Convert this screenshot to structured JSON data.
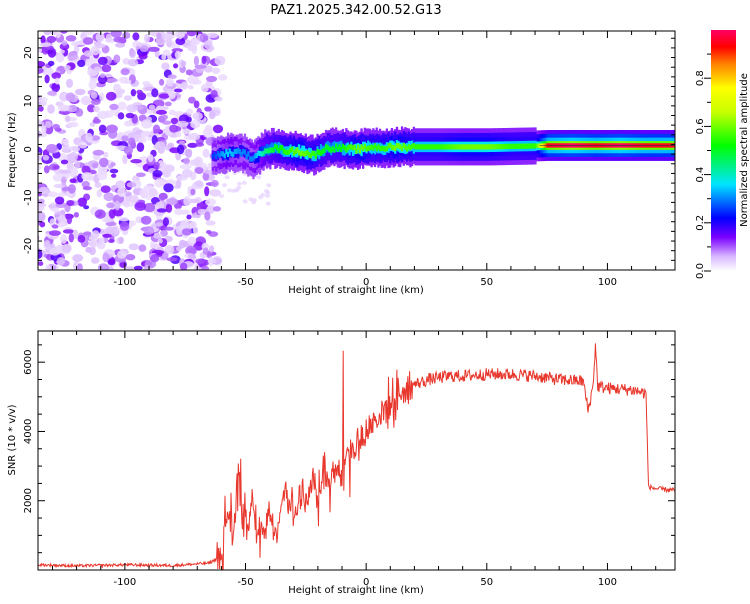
{
  "title": "PAZ1.2025.342.00.52.G13",
  "chart_data": [
    {
      "type": "heatmap",
      "title": "PAZ1.2025.342.00.52.G13",
      "xlabel": "Height of straight line (km)",
      "ylabel": "Frequency (Hz)",
      "xlim": [
        -136,
        128
      ],
      "ylim": [
        -25,
        24.5
      ],
      "xticks": [
        "-100",
        "-50",
        "0",
        "50",
        "100"
      ],
      "yticks": [
        "20",
        "10",
        "0",
        "-10",
        "-20"
      ],
      "colorbar": {
        "label": "Normalized spectral amplitude",
        "range": [
          0,
          1
        ],
        "ticks": [
          "0.0",
          "0.2",
          "0.4",
          "0.6",
          "0.8"
        ]
      },
      "noise_region_km": [
        -136,
        -62
      ],
      "ridge": [
        {
          "x": -64,
          "y": -1.5,
          "amp": 0.25
        },
        {
          "x": -58,
          "y": -0.8,
          "amp": 0.35
        },
        {
          "x": -52,
          "y": -0.6,
          "amp": 0.3
        },
        {
          "x": -47,
          "y": -2.0,
          "amp": 0.3
        },
        {
          "x": -42,
          "y": 0.0,
          "amp": 0.45
        },
        {
          "x": -38,
          "y": 0.2,
          "amp": 0.5
        },
        {
          "x": -33,
          "y": -0.3,
          "amp": 0.55
        },
        {
          "x": -28,
          "y": -0.5,
          "amp": 0.6
        },
        {
          "x": -22,
          "y": -1.2,
          "amp": 0.55
        },
        {
          "x": -17,
          "y": 0.2,
          "amp": 0.5
        },
        {
          "x": -12,
          "y": 0.3,
          "amp": 0.5
        },
        {
          "x": -8,
          "y": 0.1,
          "amp": 0.55
        },
        {
          "x": -3,
          "y": 0.0,
          "amp": 0.6
        },
        {
          "x": 2,
          "y": 0.5,
          "amp": 0.55
        },
        {
          "x": 7,
          "y": 0.3,
          "amp": 0.55
        },
        {
          "x": 12,
          "y": 0.5,
          "amp": 0.6
        },
        {
          "x": 20,
          "y": 0.5,
          "amp": 0.55
        },
        {
          "x": 30,
          "y": 0.5,
          "amp": 0.55
        },
        {
          "x": 40,
          "y": 0.5,
          "amp": 0.6
        },
        {
          "x": 50,
          "y": 0.5,
          "amp": 0.6
        },
        {
          "x": 60,
          "y": 0.6,
          "amp": 0.55
        },
        {
          "x": 70,
          "y": 0.7,
          "amp": 0.55
        },
        {
          "x": 75,
          "y": 0.8,
          "amp": 0.95
        },
        {
          "x": 85,
          "y": 0.8,
          "amp": 1.0
        },
        {
          "x": 95,
          "y": 0.8,
          "amp": 0.95
        },
        {
          "x": 105,
          "y": 0.8,
          "amp": 1.0
        },
        {
          "x": 115,
          "y": 0.8,
          "amp": 0.95
        },
        {
          "x": 128,
          "y": 0.8,
          "amp": 0.95
        }
      ]
    },
    {
      "type": "line",
      "xlabel": "Height of straight line (km)",
      "ylabel": "SNR (10 * v/v)",
      "xlim": [
        -136,
        128
      ],
      "ylim": [
        0,
        6900
      ],
      "xticks": [
        "-100",
        "-50",
        "0",
        "50",
        "100"
      ],
      "yticks": [
        "2000",
        "4000",
        "6000"
      ],
      "color": "#e8372d",
      "series": [
        {
          "name": "SNR",
          "x": [
            -136,
            -120,
            -100,
            -80,
            -65,
            -60,
            -57,
            -55,
            -53,
            -50,
            -47,
            -45,
            -42,
            -40,
            -37,
            -35,
            -33,
            -30,
            -27,
            -25,
            -22,
            -20,
            -17,
            -15,
            -12,
            -10,
            -8,
            -7,
            -5,
            -3,
            0,
            3,
            6,
            10,
            14,
            18,
            22,
            26,
            30,
            35,
            40,
            50,
            60,
            70,
            80,
            90,
            92,
            94,
            95,
            96,
            100,
            110,
            116,
            117,
            120,
            128
          ],
          "values": [
            150,
            120,
            150,
            130,
            200,
            400,
            1800,
            900,
            2800,
            1200,
            1900,
            1000,
            1300,
            1700,
            1100,
            2000,
            2400,
            1500,
            2200,
            1800,
            2600,
            1900,
            3100,
            2400,
            3200,
            2500,
            3600,
            3400,
            3500,
            3700,
            3900,
            4300,
            4500,
            4800,
            5100,
            5300,
            5400,
            5500,
            5550,
            5600,
            5600,
            5650,
            5650,
            5600,
            5500,
            5450,
            4600,
            5300,
            6500,
            5300,
            5250,
            5200,
            5100,
            2400,
            2350,
            2300
          ]
        }
      ]
    }
  ]
}
